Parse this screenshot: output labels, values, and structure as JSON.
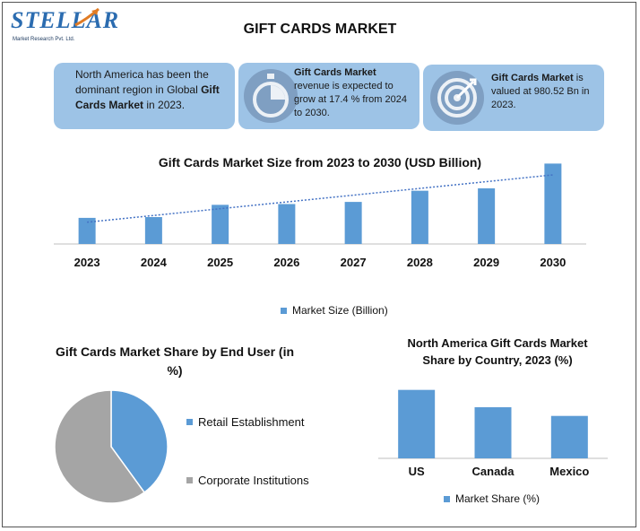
{
  "brand": {
    "name": "STELLAR",
    "tagline": "Market Research Pvt. Ltd."
  },
  "title": "GIFT CARDS MARKET",
  "cards": {
    "region": {
      "pre": "North America has been the dominant region in Global ",
      "bold": "Gift Cards Market",
      "post": " in 2023."
    },
    "growth": {
      "bold": "Gift Cards Market",
      "post": " revenue is expected to grow at 17.4 % from 2024 to 2030."
    },
    "value": {
      "bold": "Gift Cards Market",
      "post": " is valued at 980.52 Bn in 2023."
    }
  },
  "icons": {
    "growth": "stopwatch-icon",
    "value": "target-icon"
  },
  "colors": {
    "bar": "#5b9bd5",
    "card": "#9dc3e6",
    "pie_grey": "#a5a5a5",
    "trend": "#4472c4"
  },
  "chart_data": [
    {
      "type": "bar",
      "title": "Gift Cards Market Size from 2023 to 2030 (USD Billion)",
      "categories": [
        "2023",
        "2024",
        "2025",
        "2026",
        "2027",
        "2028",
        "2029",
        "2030"
      ],
      "series": [
        {
          "name": "Market Size (Billion)",
          "values": [
            980.52,
            1010,
            1470,
            1500,
            1580,
            2000,
            2090,
            3020
          ]
        }
      ],
      "trendline": "linear",
      "grid": false,
      "legend": "bottom",
      "ylim": [
        0,
        3100
      ]
    },
    {
      "type": "pie",
      "title": "Gift Cards Market Share by End User (in %)",
      "labels": [
        "Retail Establishment",
        "Corporate Institutions"
      ],
      "values": [
        40,
        60
      ],
      "legend": "right"
    },
    {
      "type": "bar",
      "title": "North America Gift Cards Market Share by Country, 2023 (%)",
      "categories": [
        "US",
        "Canada",
        "Mexico"
      ],
      "series": [
        {
          "name": "Market Share (%)",
          "values": [
            71,
            53,
            44
          ]
        }
      ],
      "grid": false,
      "legend": "bottom",
      "ylim": [
        0,
        80
      ]
    }
  ]
}
